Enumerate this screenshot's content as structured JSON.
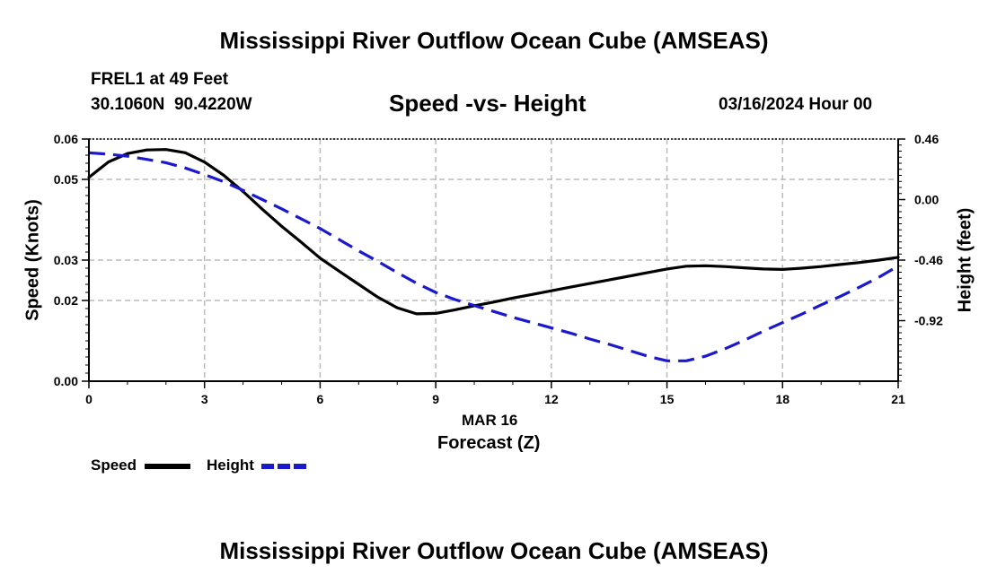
{
  "page": {
    "title": "Mississippi River Outflow Ocean Cube (AMSEAS)",
    "footer_title": "Mississippi River Outflow Ocean Cube (AMSEAS)",
    "station": "FREL1 at 49 Feet",
    "coords": "30.1060N  90.4220W",
    "datetime": "03/16/2024 Hour 00"
  },
  "legend": {
    "speed_label": "Speed",
    "height_label": "Height"
  },
  "colors": {
    "speed": "#000000",
    "height": "#1a1acc",
    "grid": "#bbbbbb"
  },
  "chart_data": {
    "type": "line",
    "title": "Speed -vs- Height",
    "xlabel": "Forecast (Z)",
    "x_date_label": "MAR 16",
    "ylabel": "Speed (Knots)",
    "y2label": "Height (feet)",
    "xlim": [
      0,
      21
    ],
    "ylim": [
      0,
      0.06
    ],
    "y2lim": [
      -1.38,
      0.46
    ],
    "x_ticks": [
      0,
      3,
      6,
      9,
      12,
      15,
      18,
      21
    ],
    "y_ticks": [
      0,
      0.02,
      0.03,
      0.05,
      0.06
    ],
    "y_tick_labels": [
      "0.00",
      "0.02",
      "0.03",
      "0.05",
      "0.06"
    ],
    "y2_ticks": [
      0.46,
      0.0,
      -0.46,
      -0.92
    ],
    "y2_tick_labels": [
      "0.46",
      "0.00",
      "-0.46",
      "-0.92"
    ],
    "grid": true,
    "series": [
      {
        "name": "Speed",
        "axis": "left",
        "style": "solid",
        "x": [
          0,
          0.5,
          1,
          1.5,
          2,
          2.5,
          3,
          3.5,
          4,
          4.5,
          5,
          5.5,
          6,
          6.5,
          7,
          7.5,
          8,
          8.5,
          9,
          9.5,
          10,
          10.5,
          11,
          11.5,
          12,
          12.5,
          13,
          13.5,
          14,
          14.5,
          15,
          15.5,
          16,
          16.5,
          17,
          17.5,
          18,
          18.5,
          19,
          19.5,
          20,
          20.5,
          21
        ],
        "values": [
          0.0505,
          0.0543,
          0.0564,
          0.0573,
          0.0574,
          0.0566,
          0.0543,
          0.051,
          0.047,
          0.0426,
          0.0384,
          0.0345,
          0.0305,
          0.0272,
          0.024,
          0.0208,
          0.0182,
          0.0167,
          0.0168,
          0.0177,
          0.0187,
          0.0196,
          0.0206,
          0.0215,
          0.0224,
          0.0233,
          0.0242,
          0.0251,
          0.026,
          0.0269,
          0.0278,
          0.0285,
          0.0286,
          0.0284,
          0.0281,
          0.0278,
          0.0277,
          0.028,
          0.0284,
          0.0289,
          0.0294,
          0.03,
          0.0307
        ]
      },
      {
        "name": "Height",
        "axis": "right",
        "style": "dashed",
        "x": [
          0,
          0.5,
          1,
          1.5,
          2,
          2.5,
          3,
          3.5,
          4,
          4.5,
          5,
          5.5,
          6,
          6.5,
          7,
          7.5,
          8,
          8.5,
          9,
          9.5,
          10,
          10.5,
          11,
          11.5,
          12,
          12.5,
          13,
          13.5,
          14,
          14.5,
          15,
          15.5,
          16,
          16.5,
          17,
          17.5,
          18,
          18.5,
          19,
          19.5,
          20,
          20.5,
          21
        ],
        "values": [
          0.355,
          0.345,
          0.33,
          0.305,
          0.28,
          0.24,
          0.19,
          0.135,
          0.07,
          0.0,
          -0.07,
          -0.145,
          -0.22,
          -0.305,
          -0.39,
          -0.47,
          -0.555,
          -0.635,
          -0.705,
          -0.76,
          -0.805,
          -0.85,
          -0.895,
          -0.935,
          -0.975,
          -1.015,
          -1.06,
          -1.1,
          -1.145,
          -1.19,
          -1.225,
          -1.225,
          -1.19,
          -1.135,
          -1.07,
          -1.0,
          -0.935,
          -0.87,
          -0.8,
          -0.735,
          -0.665,
          -0.59,
          -0.505
        ]
      }
    ]
  }
}
